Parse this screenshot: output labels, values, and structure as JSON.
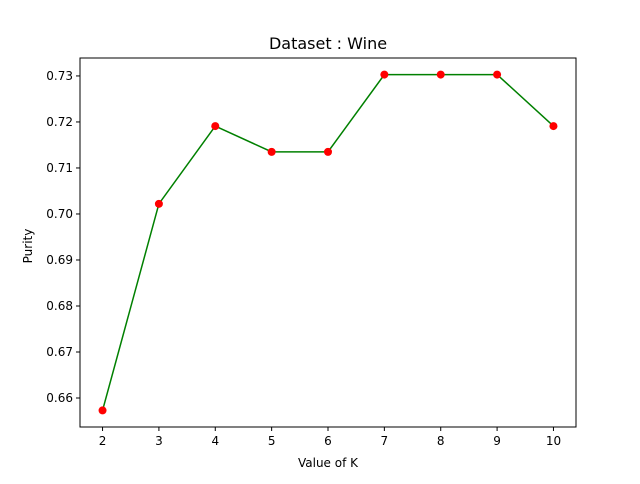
{
  "chart_data": {
    "type": "line",
    "title": "Dataset : Wine",
    "xlabel": "Value of K",
    "ylabel": "Purity",
    "x": [
      2,
      3,
      4,
      5,
      6,
      7,
      8,
      9,
      10
    ],
    "series": [
      {
        "values": [
          0.6573,
          0.7022,
          0.7191,
          0.7135,
          0.7135,
          0.7303,
          0.7303,
          0.7303,
          0.7191
        ],
        "line_color": "#008000",
        "marker_color": "#ff0000"
      }
    ],
    "xticks": [
      "2",
      "3",
      "4",
      "5",
      "6",
      "7",
      "8",
      "9",
      "10"
    ],
    "yticks": [
      "0.66",
      "0.67",
      "0.68",
      "0.69",
      "0.70",
      "0.71",
      "0.72",
      "0.73"
    ],
    "xlim": [
      1.6,
      10.4
    ],
    "ylim": [
      0.6537,
      0.7339
    ],
    "grid": false
  }
}
